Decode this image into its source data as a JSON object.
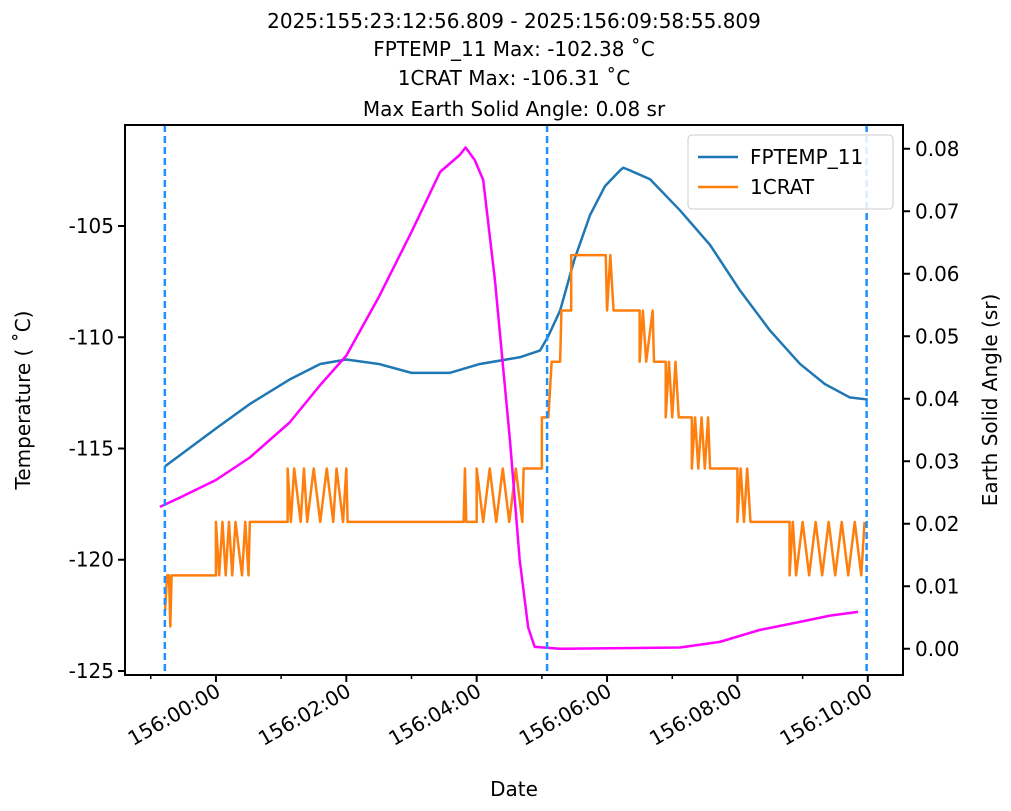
{
  "chart_data": {
    "type": "line",
    "title": [
      "2025:155:23:12:56.809 - 2025:156:09:58:55.809",
      "FPTEMP_11 Max: -102.38 ˚C",
      "1CRAT Max: -106.31 ˚C",
      "Max Earth Solid Angle: 0.08 sr"
    ],
    "xlabel": "Date",
    "ylabel": "Temperature ( ˚C)",
    "y2label": "Earth Solid Angle (sr)",
    "xlim": [
      -1.395,
      10.54
    ],
    "ylim": [
      -125.18,
      -100.46
    ],
    "y2lim": [
      -0.0042,
      0.0838
    ],
    "xticks": [
      {
        "value": 0,
        "label": "156:00:00"
      },
      {
        "value": 2,
        "label": "156:02:00"
      },
      {
        "value": 4,
        "label": "156:04:00"
      },
      {
        "value": 6,
        "label": "156:06:00"
      },
      {
        "value": 8,
        "label": "156:08:00"
      },
      {
        "value": 10,
        "label": "156:10:00"
      }
    ],
    "xminorticks": [
      -1,
      1,
      3,
      5,
      7,
      9
    ],
    "yticks": [
      -125,
      -120,
      -115,
      -110,
      -105
    ],
    "y2ticks": [
      {
        "value": 0,
        "label": "0.00"
      },
      0.01,
      0.02,
      0.03,
      0.04,
      0.05,
      0.06,
      0.07,
      0.08
    ],
    "vlines": [
      -0.784,
      5.08,
      9.982
    ],
    "vline_color": "#1e90ff",
    "legend": "upper right",
    "series": [
      {
        "name": "FPTEMP_11",
        "color": "#1f77b4",
        "x": [
          -0.78,
          -0.55,
          0,
          0.52,
          1.13,
          1.6,
          2.0,
          2.5,
          3.0,
          3.59,
          4.05,
          4.66,
          4.97,
          5.09,
          5.28,
          5.5,
          5.74,
          5.97,
          6.2,
          6.25,
          6.35,
          6.66,
          7.12,
          7.58,
          8.04,
          8.5,
          8.96,
          9.34,
          9.72,
          10.0
        ],
        "values": [
          -115.8,
          -115.3,
          -114.1,
          -113.0,
          -111.9,
          -111.2,
          -111.0,
          -111.2,
          -111.6,
          -111.6,
          -111.2,
          -110.9,
          -110.6,
          -110.0,
          -108.8,
          -106.5,
          -104.5,
          -103.2,
          -102.5,
          -102.38,
          -102.5,
          -102.9,
          -104.3,
          -105.85,
          -107.9,
          -109.7,
          -111.2,
          -112.1,
          -112.7,
          -112.8
        ]
      },
      {
        "name": "1CRAT",
        "color": "#ff7f0e",
        "x": [
          -0.78,
          -0.75,
          -0.72,
          -0.7,
          -0.68,
          0.0,
          0.0,
          0.05,
          0.1,
          0.15,
          0.2,
          0.25,
          0.3,
          0.4,
          0.45,
          0.5,
          0.52,
          1.1,
          1.1,
          1.15,
          1.2,
          1.3,
          1.35,
          1.4,
          1.5,
          1.6,
          1.7,
          1.8,
          1.85,
          1.95,
          2.0,
          2.02,
          3.8,
          3.82,
          3.84,
          4.0,
          4.0,
          4.1,
          4.2,
          4.3,
          4.4,
          4.5,
          4.6,
          4.7,
          4.72,
          5.0,
          5.0,
          5.1,
          5.15,
          5.28,
          5.3,
          5.45,
          5.45,
          5.98,
          6.0,
          6.05,
          6.1,
          6.5,
          6.5,
          6.55,
          6.6,
          6.7,
          6.72,
          6.9,
          6.9,
          6.95,
          7.0,
          7.05,
          7.1,
          7.3,
          7.3,
          7.35,
          7.4,
          7.45,
          7.5,
          7.55,
          7.58,
          8.0,
          8.0,
          8.05,
          8.1,
          8.15,
          8.2,
          8.8,
          8.8,
          8.85,
          8.9,
          9.0,
          9.1,
          9.2,
          9.3,
          9.4,
          9.5,
          9.6,
          9.7,
          9.8,
          9.9,
          9.95
        ],
        "values": [
          -122.3,
          -120.7,
          -120.7,
          -123.0,
          -120.7,
          -120.7,
          -118.3,
          -120.7,
          -118.3,
          -120.7,
          -118.3,
          -120.7,
          -118.3,
          -120.7,
          -118.3,
          -120.7,
          -118.3,
          -118.3,
          -115.9,
          -118.3,
          -115.9,
          -118.3,
          -115.9,
          -118.3,
          -115.9,
          -118.3,
          -115.9,
          -118.3,
          -115.9,
          -118.3,
          -115.9,
          -118.3,
          -118.3,
          -115.9,
          -118.3,
          -118.3,
          -115.9,
          -118.3,
          -115.9,
          -118.3,
          -115.9,
          -118.3,
          -115.9,
          -118.3,
          -115.9,
          -115.9,
          -113.6,
          -113.6,
          -111.1,
          -111.1,
          -108.8,
          -108.8,
          -106.31,
          -106.31,
          -108.8,
          -106.31,
          -108.8,
          -108.8,
          -111.1,
          -108.8,
          -111.1,
          -108.8,
          -111.1,
          -111.1,
          -113.6,
          -111.1,
          -113.6,
          -111.1,
          -113.6,
          -113.6,
          -115.9,
          -113.6,
          -115.9,
          -113.6,
          -115.9,
          -113.6,
          -115.9,
          -115.9,
          -118.3,
          -115.9,
          -118.3,
          -115.9,
          -118.3,
          -118.3,
          -120.7,
          -118.3,
          -120.7,
          -118.3,
          -120.7,
          -118.3,
          -120.7,
          -118.3,
          -120.7,
          -118.3,
          -120.7,
          -118.3,
          -120.7,
          -118.3
        ]
      },
      {
        "color": "#ff00ff",
        "axis": "y2",
        "x": [
          -0.86,
          -0.55,
          0,
          0.52,
          1.13,
          1.6,
          2.0,
          2.5,
          3.0,
          3.44,
          3.74,
          3.83,
          3.97,
          4.1,
          4.28,
          4.51,
          4.66,
          4.79,
          4.89,
          5.28,
          7.12,
          7.73,
          8.34,
          8.96,
          9.42,
          9.85
        ],
        "values": [
          0.0227,
          0.0242,
          0.027,
          0.0306,
          0.0362,
          0.0422,
          0.0469,
          0.0563,
          0.0667,
          0.0763,
          0.079,
          0.0802,
          0.0782,
          0.075,
          0.059,
          0.0334,
          0.0142,
          0.0034,
          0.0003,
          0.0,
          0.0002,
          0.0011,
          0.003,
          0.0043,
          0.0053,
          0.0059
        ]
      }
    ]
  }
}
